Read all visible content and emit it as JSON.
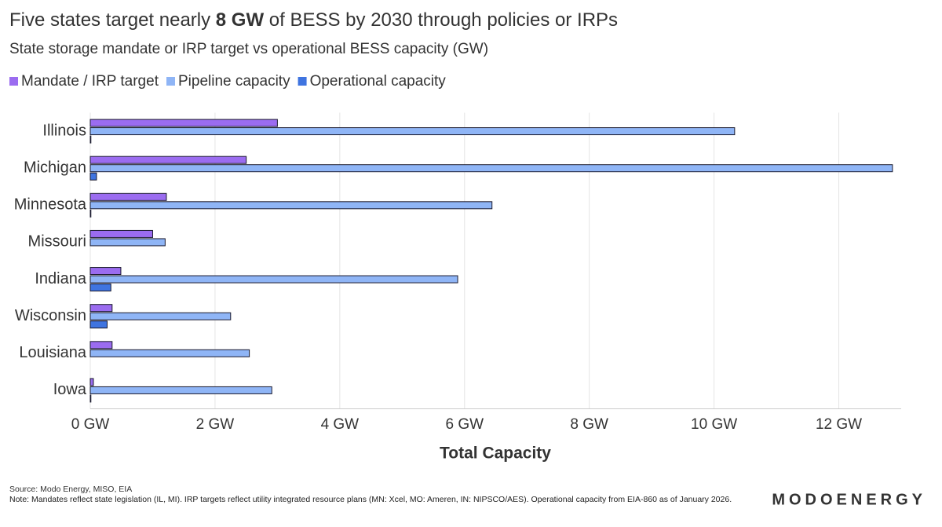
{
  "chart_data": {
    "type": "hbar",
    "title": [
      "Five states target nearly ",
      "8 GW",
      " of BESS by 2030 through policies or IRPs"
    ],
    "subtitle": "State storage mandate or IRP target vs operational BESS capacity (GW)",
    "x_label": "Total Capacity",
    "categories": [
      "Illinois",
      "Michigan",
      "Minnesota",
      "Missouri",
      "Indiana",
      "Wisconsin",
      "Louisiana",
      "Iowa"
    ],
    "series": [
      {
        "name": "Mandate / IRP target",
        "color": "#9b6cf0",
        "values": [
          3.0,
          2.5,
          1.22,
          1.0,
          0.49,
          0.35,
          0.35,
          0.05
        ]
      },
      {
        "name": "Pipeline capacity",
        "color": "#8fb5f6",
        "values": [
          10.33,
          12.86,
          6.44,
          1.2,
          5.89,
          2.25,
          2.55,
          2.91
        ]
      },
      {
        "name": "Operational capacity",
        "color": "#3f74e0",
        "values": [
          0.01,
          0.1,
          0.01,
          0,
          0.33,
          0.27,
          0,
          0.01
        ]
      }
    ],
    "xlim": [
      0,
      13
    ],
    "xticks": [
      {
        "value": 0,
        "label": "0 GW"
      },
      {
        "value": 2,
        "label": "2 GW"
      },
      {
        "value": 4,
        "label": "4 GW"
      },
      {
        "value": 6,
        "label": "6 GW"
      },
      {
        "value": 8,
        "label": "8 GW"
      },
      {
        "value": 10,
        "label": "10 GW"
      },
      {
        "value": 12,
        "label": "12 GW"
      }
    ],
    "grid": true,
    "source": "Source: Modo Energy, MISO, EIA",
    "note": "Note: Mandates reflect state legislation (IL, MI). IRP targets reflect utility integrated resource plans (MN: Xcel, MO: Ameren, IN: NIPSCO/AES). Operational capacity from EIA-860 as of January 2026.",
    "logo": "MODOENERGY"
  }
}
